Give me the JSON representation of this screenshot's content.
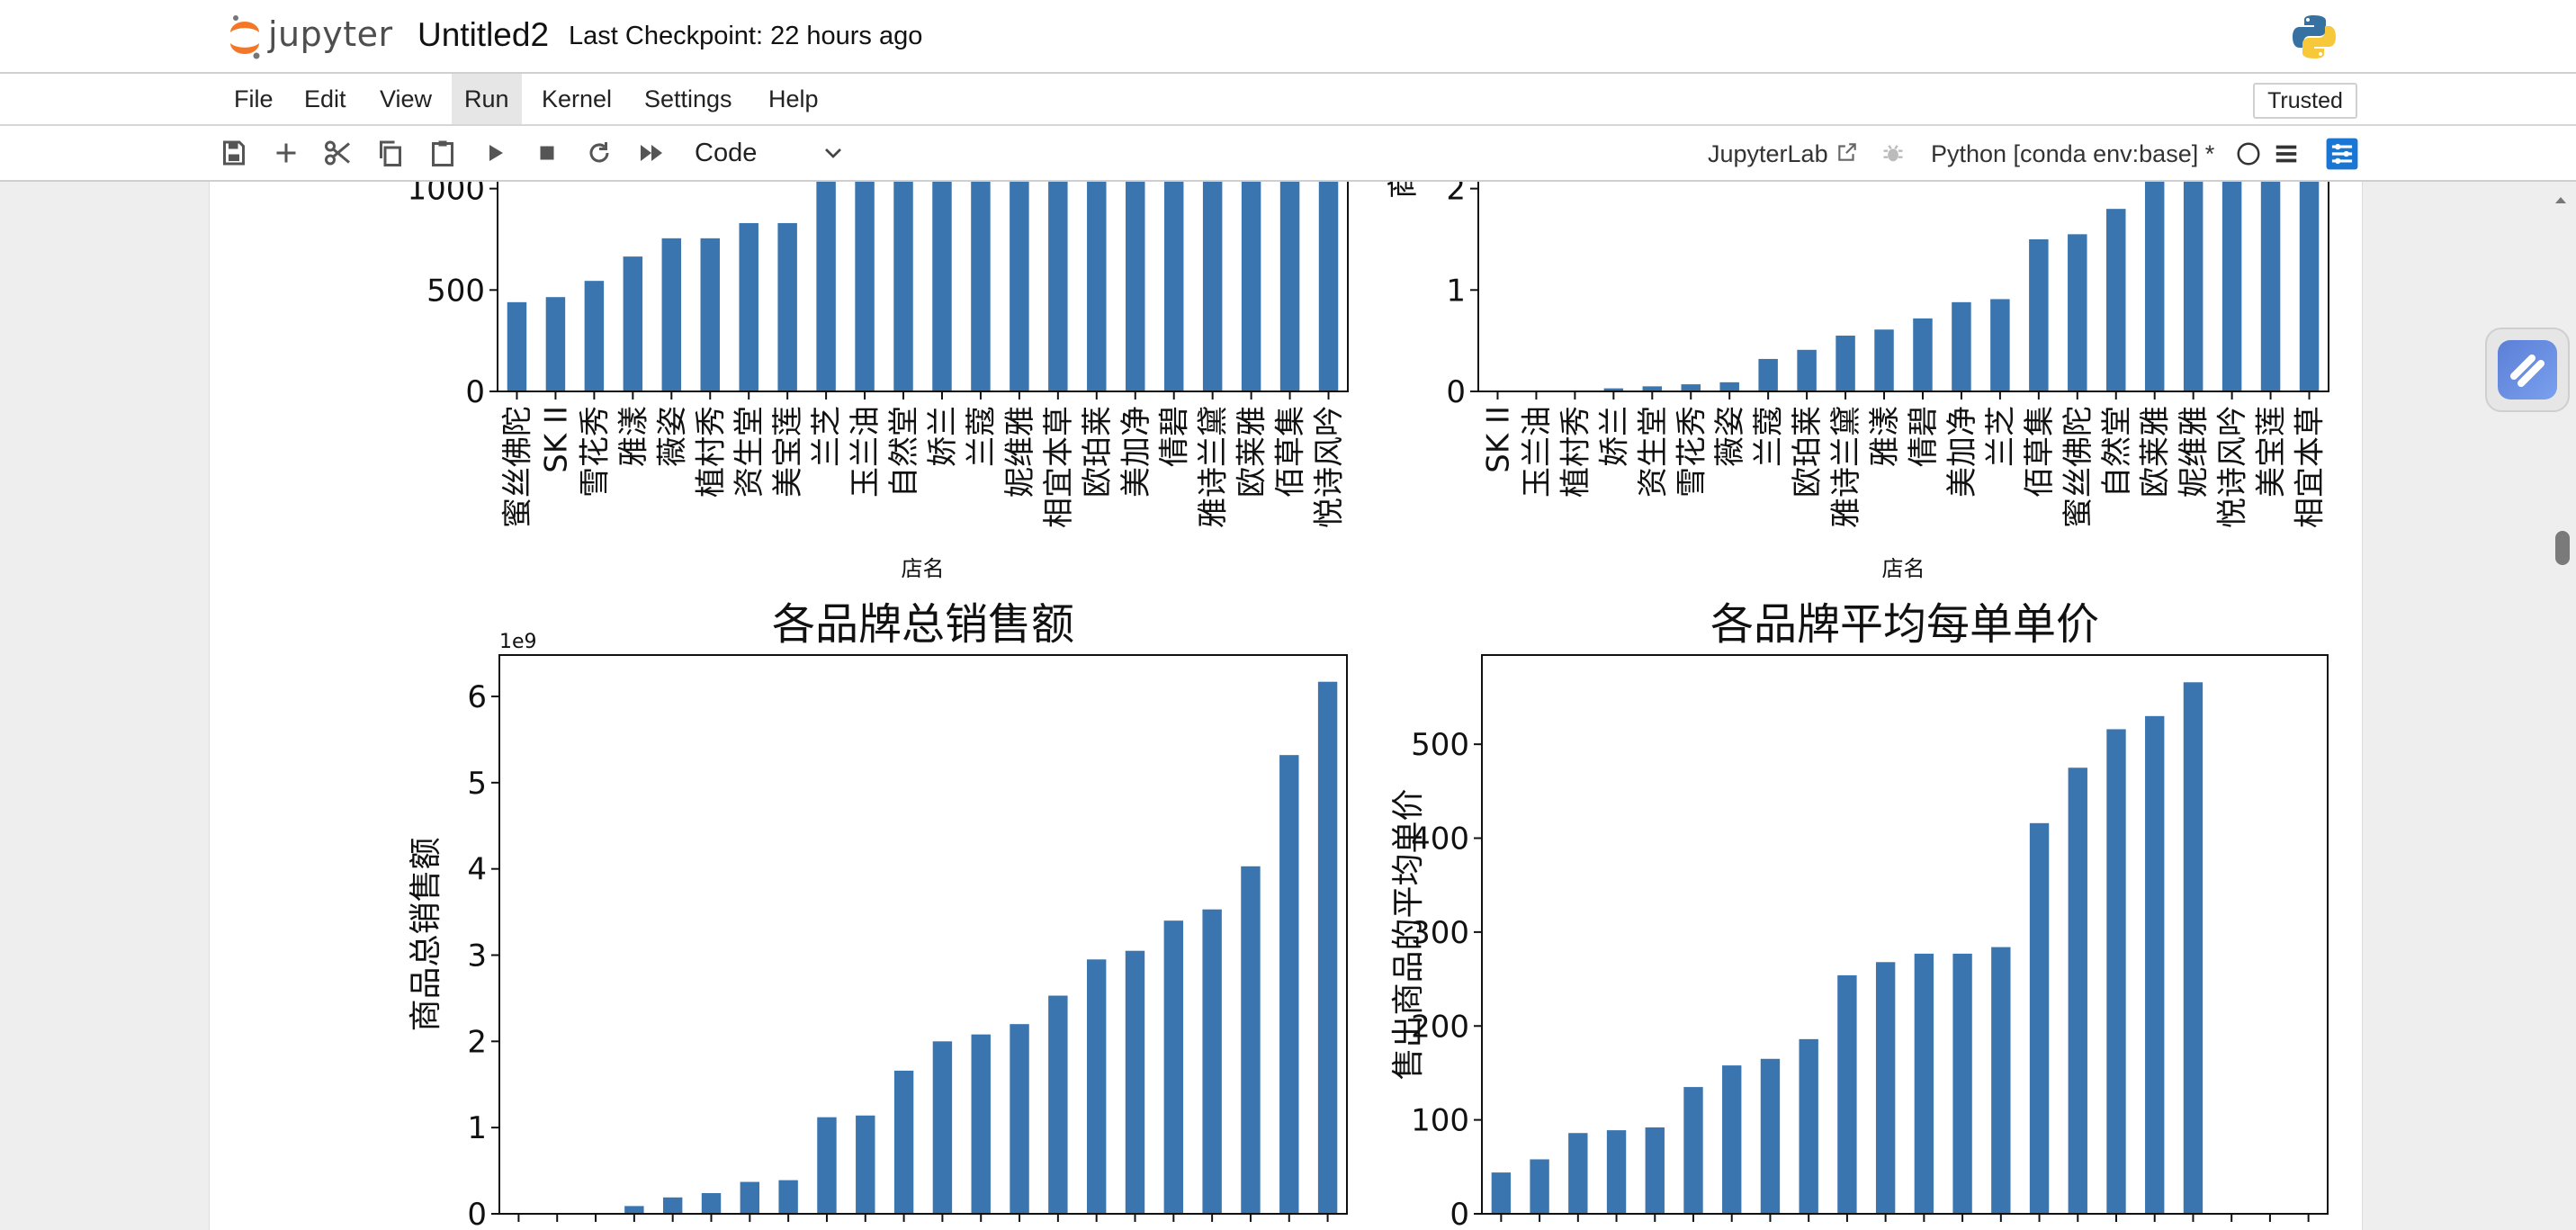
{
  "app": {
    "logo_text": "jupyter",
    "notebook_title": "Untitled2",
    "checkpoint": "Last Checkpoint: 22 hours ago"
  },
  "menu": {
    "items": [
      "File",
      "Edit",
      "View",
      "Run",
      "Kernel",
      "Settings",
      "Help"
    ],
    "active": "Run",
    "trusted": "Trusted"
  },
  "toolbar": {
    "buttons": [
      "save-icon",
      "add-cell-icon",
      "cut-icon",
      "copy-icon",
      "paste-icon",
      "run-icon",
      "stop-icon",
      "restart-icon",
      "run-all-icon"
    ],
    "cell_type": "Code",
    "jupyterlab_link": "JupyterLab",
    "kernel": "Python [conda env:base] *",
    "accent_color": "#1976d2"
  },
  "chart_data": [
    {
      "type": "bar",
      "title": "",
      "xlabel": "店名",
      "ylabel": "",
      "categories": [
        "蜜丝佛陀",
        "SK II",
        "雪花秀",
        "雅漾",
        "薇姿",
        "植村秀",
        "资生堂",
        "美宝莲",
        "兰芝",
        "玉兰油",
        "自然堂",
        "娇兰",
        "兰蔻",
        "妮维雅",
        "相宜本草",
        "欧珀莱",
        "美加净",
        "倩碧",
        "雅诗兰黛",
        "欧莱雅",
        "佰草集",
        "悦诗风吟"
      ],
      "values": [
        440,
        465,
        545,
        665,
        755,
        755,
        830,
        830,
        1090,
        1125,
        1300,
        1300,
        1300,
        1300,
        1300,
        1300,
        1300,
        1300,
        1300,
        1300,
        1300,
        1300
      ],
      "yticks": [
        "0",
        "500",
        "1000"
      ],
      "ylim": [
        0,
        1300
      ],
      "bar_color": "#3a75b0"
    },
    {
      "type": "bar",
      "title": "",
      "xlabel": "店名",
      "ylabel": "商",
      "categories": [
        "SK II",
        "玉兰油",
        "植村秀",
        "娇兰",
        "资生堂",
        "雪花秀",
        "薇姿",
        "兰蔻",
        "欧珀莱",
        "雅诗兰黛",
        "雅漾",
        "倩碧",
        "美加净",
        "兰芝",
        "佰草集",
        "蜜丝佛陀",
        "自然堂",
        "欧莱雅",
        "妮维雅",
        "悦诗风吟",
        "美宝莲",
        "相宜本草"
      ],
      "values": [
        0.005,
        0.005,
        0.008,
        0.03,
        0.05,
        0.07,
        0.09,
        0.32,
        0.41,
        0.55,
        0.61,
        0.72,
        0.88,
        0.91,
        1.5,
        1.55,
        1.8,
        2.6,
        2.6,
        2.6,
        2.6,
        2.6
      ],
      "yticks": [
        "0",
        "1",
        "2"
      ],
      "ylim": [
        0,
        2.6
      ],
      "bar_color": "#3a75b0"
    },
    {
      "type": "bar",
      "title": "各品牌总销售额",
      "xlabel": "",
      "ylabel": "商品总销售额",
      "offset_text": "1e9",
      "values": [
        0,
        0,
        0.005,
        0.09,
        0.19,
        0.24,
        0.37,
        0.39,
        1.12,
        1.14,
        1.66,
        2.0,
        2.08,
        2.2,
        2.53,
        2.95,
        3.05,
        3.4,
        3.53,
        4.03,
        5.32,
        6.17
      ],
      "yticks": [
        "0",
        "1",
        "2",
        "3",
        "4",
        "5",
        "6"
      ],
      "ylim": [
        0,
        6.48
      ],
      "bar_color": "#3a75b0"
    },
    {
      "type": "bar",
      "title": "各品牌平均每单单价",
      "xlabel": "",
      "ylabel": "售出商品的平均单价",
      "values": [
        44,
        58,
        86,
        89,
        92,
        135,
        158,
        165,
        186,
        254,
        268,
        277,
        277,
        284,
        416,
        475,
        516,
        530,
        566,
        0,
        0,
        0
      ],
      "yticks": [
        "0",
        "100",
        "200",
        "300",
        "400",
        "500"
      ],
      "ylim": [
        0,
        595
      ],
      "bar_color": "#3a75b0"
    }
  ]
}
